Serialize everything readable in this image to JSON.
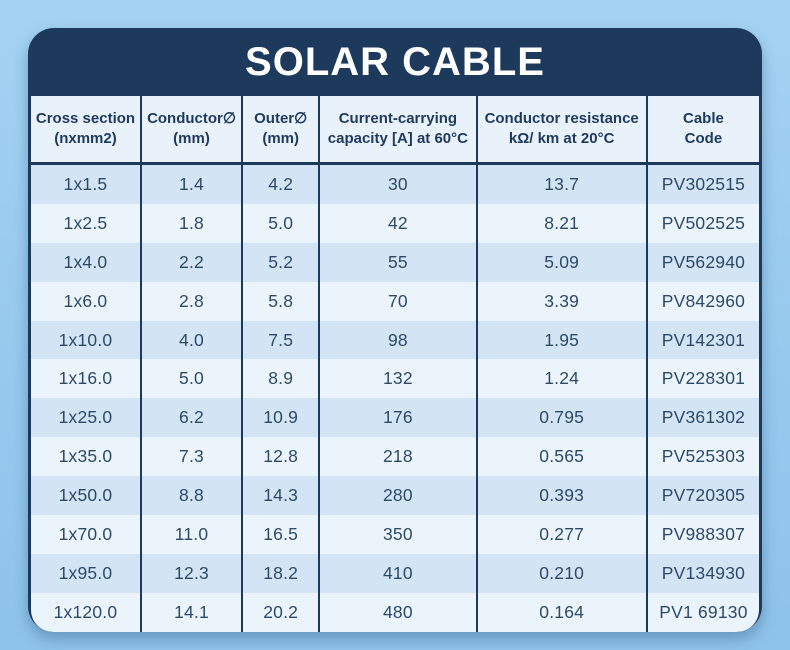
{
  "page": {
    "background_top": "#a4d2f2",
    "background_bottom": "#8ec3ea"
  },
  "card": {
    "background": "#1d3a5c",
    "title": "SOLAR CABLE",
    "title_color": "#ffffff"
  },
  "table_colors": {
    "header_bg": "#e9f1fa",
    "row_odd_bg": "#d3e5f5",
    "row_even_bg": "#ecf4fb",
    "border": "#1d3a5c",
    "text": "#2c4a68"
  },
  "chart_data": {
    "type": "table",
    "title": "SOLAR CABLE",
    "columns": [
      {
        "line1": "Cross section",
        "line2": "(nxmm2)"
      },
      {
        "line1": "Conductor∅",
        "line2": "(mm)"
      },
      {
        "line1": "Outer∅",
        "line2": "(mm)"
      },
      {
        "line1": "Current-carrying",
        "line2": "capacity [A] at 60°C"
      },
      {
        "line1": "Conductor resistance",
        "line2": "kΩ/ km at 20°C"
      },
      {
        "line1": "Cable",
        "line2": "Code"
      }
    ],
    "rows": [
      [
        "1x1.5",
        "1.4",
        "4.2",
        "30",
        "13.7",
        "PV302515"
      ],
      [
        "1x2.5",
        "1.8",
        "5.0",
        "42",
        "8.21",
        "PV502525"
      ],
      [
        "1x4.0",
        "2.2",
        "5.2",
        "55",
        "5.09",
        "PV562940"
      ],
      [
        "1x6.0",
        "2.8",
        "5.8",
        "70",
        "3.39",
        "PV842960"
      ],
      [
        "1x10.0",
        "4.0",
        "7.5",
        "98",
        "1.95",
        "PV142301"
      ],
      [
        "1x16.0",
        "5.0",
        "8.9",
        "132",
        "1.24",
        "PV228301"
      ],
      [
        "1x25.0",
        "6.2",
        "10.9",
        "176",
        "0.795",
        "PV361302"
      ],
      [
        "1x35.0",
        "7.3",
        "12.8",
        "218",
        "0.565",
        "PV525303"
      ],
      [
        "1x50.0",
        "8.8",
        "14.3",
        "280",
        "0.393",
        "PV720305"
      ],
      [
        "1x70.0",
        "11.0",
        "16.5",
        "350",
        "0.277",
        "PV988307"
      ],
      [
        "1x95.0",
        "12.3",
        "18.2",
        "410",
        "0.210",
        "PV134930"
      ],
      [
        "1x120.0",
        "14.1",
        "20.2",
        "480",
        "0.164",
        "PV1 69130"
      ]
    ]
  }
}
